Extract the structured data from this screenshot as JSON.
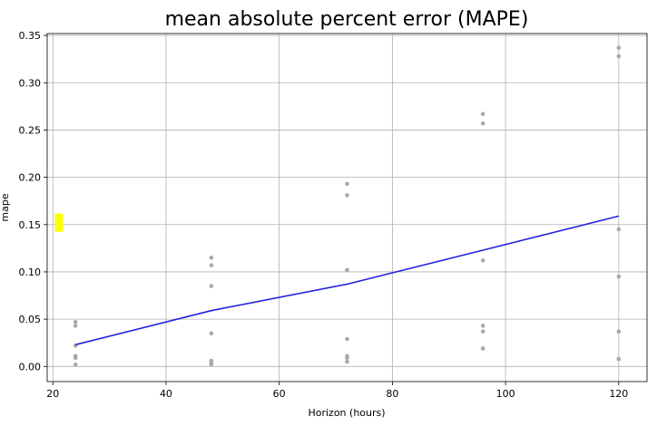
{
  "chart_data": {
    "type": "scatter",
    "title": "mean absolute percent error (MAPE)",
    "xlabel": "Horizon (hours)",
    "ylabel": "mape",
    "xlim": [
      19,
      125
    ],
    "ylim": [
      -0.016,
      0.352
    ],
    "xticks": [
      20,
      40,
      60,
      80,
      100,
      120
    ],
    "yticks": [
      0.0,
      0.05,
      0.1,
      0.15,
      0.2,
      0.25,
      0.3,
      0.35
    ],
    "grid": true,
    "colors": {
      "points": "#a9a9a9",
      "line": "#2222dd",
      "highlight": "#ffff00"
    },
    "series": [
      {
        "type": "scatter",
        "x": [
          24,
          24,
          24,
          24,
          24,
          24,
          24,
          48,
          48,
          48,
          48,
          48,
          48,
          48,
          72,
          72,
          72,
          72,
          72,
          72,
          72,
          96,
          96,
          96,
          96,
          96,
          96,
          96,
          120,
          120,
          120,
          120,
          120,
          120,
          120
        ],
        "y": [
          0.047,
          0.043,
          0.022,
          0.011,
          0.01,
          0.009,
          0.002,
          0.115,
          0.107,
          0.085,
          0.035,
          0.006,
          0.004,
          0.002,
          0.193,
          0.181,
          0.102,
          0.029,
          0.011,
          0.009,
          0.005,
          0.267,
          0.257,
          0.112,
          0.043,
          0.037,
          0.019,
          0.019,
          0.337,
          0.328,
          0.145,
          0.095,
          0.037,
          0.008,
          0.008
        ]
      },
      {
        "type": "line",
        "x": [
          24,
          48,
          72,
          96,
          120
        ],
        "y": [
          0.023,
          0.059,
          0.087,
          0.123,
          0.159
        ]
      }
    ],
    "highlight": {
      "x": 21,
      "y": 0.152
    }
  }
}
